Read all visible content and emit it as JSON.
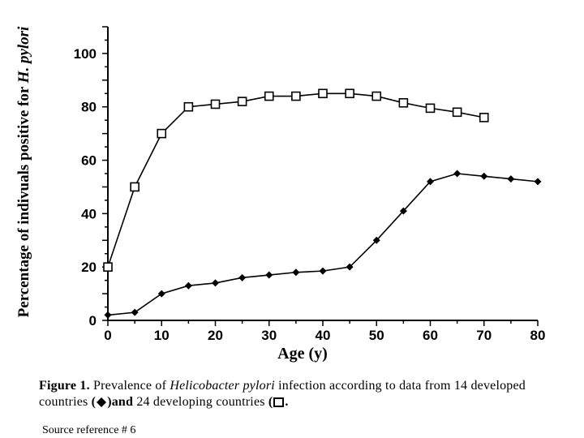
{
  "chart_data": {
    "type": "line",
    "xlabel": "Age (y)",
    "ylabel": "Percentage of indivuals positive for H. pylori",
    "ylabel_parts": {
      "plain": "Percentage of indivuals positive for ",
      "italic": "H. pylori"
    },
    "xlim": [
      0,
      80
    ],
    "ylim": [
      0,
      110
    ],
    "xticks": [
      0,
      10,
      20,
      30,
      40,
      50,
      60,
      70,
      80
    ],
    "yticks": [
      0,
      20,
      40,
      60,
      80,
      100
    ],
    "grid": false,
    "series": [
      {
        "marker": "open-square",
        "x": [
          0,
          5,
          10,
          15,
          20,
          25,
          30,
          35,
          40,
          45,
          50,
          55,
          60,
          65,
          70
        ],
        "y": [
          20,
          50,
          70,
          80,
          81,
          82,
          84,
          84,
          85,
          85,
          84,
          81.5,
          79.5,
          78,
          76
        ]
      },
      {
        "marker": "filled-diamond",
        "x": [
          0,
          5,
          10,
          15,
          20,
          25,
          30,
          35,
          40,
          45,
          50,
          55,
          60,
          65,
          70,
          75,
          80
        ],
        "y": [
          2,
          3,
          10,
          13,
          14,
          16,
          17,
          18,
          18.5,
          20,
          30,
          41,
          52,
          55,
          54,
          53,
          52
        ]
      }
    ]
  },
  "caption": {
    "figure_label": "Figure 1.",
    "text_1": "Prevalence of",
    "species": "Helicobacter pylori",
    "text_2": "infection according to data from 14 developed countries",
    "open_paren": "(",
    "close_paren_and": ")and",
    "text_3": "24 developing countries",
    "trailing": "."
  },
  "source": "Source reference # 6"
}
